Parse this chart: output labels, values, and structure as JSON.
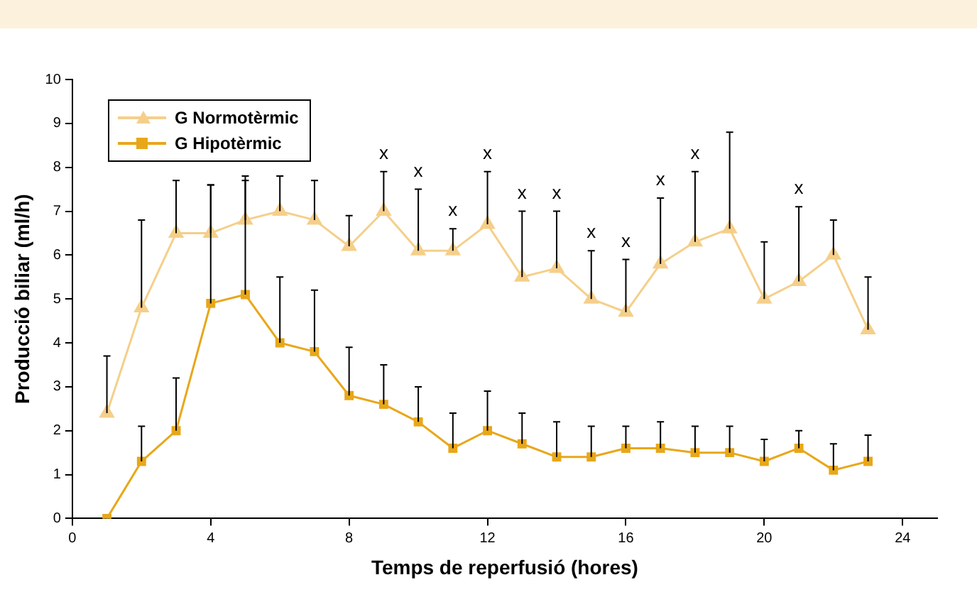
{
  "chart_data": {
    "type": "line",
    "xlabel": "Temps de reperfusió (hores)",
    "ylabel": "Producció biliar (ml/h)",
    "x": [
      1,
      2,
      3,
      4,
      5,
      6,
      7,
      8,
      9,
      10,
      11,
      12,
      13,
      14,
      15,
      16,
      17,
      18,
      19,
      20,
      21,
      22,
      23
    ],
    "series": [
      {
        "name": "G Normotèrmic",
        "color": "#f5cf8a",
        "marker": "triangle",
        "values": [
          2.4,
          4.8,
          6.5,
          6.5,
          6.8,
          7.0,
          6.8,
          6.2,
          7.0,
          6.1,
          6.1,
          6.7,
          5.5,
          5.7,
          5.0,
          4.7,
          5.8,
          6.3,
          6.6,
          5.0,
          5.4,
          6.0,
          4.3
        ],
        "errors": [
          [
            2.4,
            3.7
          ],
          [
            4.8,
            6.8
          ],
          [
            6.5,
            7.7
          ],
          [
            6.5,
            7.6
          ],
          [
            6.8,
            7.8
          ],
          [
            7.0,
            7.8
          ],
          [
            6.8,
            7.7
          ],
          [
            6.2,
            6.9
          ],
          [
            7.0,
            7.9
          ],
          [
            6.1,
            7.5
          ],
          [
            6.1,
            6.6
          ],
          [
            6.7,
            7.9
          ],
          [
            5.5,
            7.0
          ],
          [
            5.7,
            7.0
          ],
          [
            5.0,
            6.1
          ],
          [
            4.7,
            5.9
          ],
          [
            5.8,
            7.3
          ],
          [
            6.3,
            7.9
          ],
          [
            6.6,
            8.8
          ],
          [
            5.0,
            6.3
          ],
          [
            5.4,
            7.1
          ],
          [
            6.0,
            6.8
          ],
          [
            4.3,
            5.5
          ]
        ]
      },
      {
        "name": "G Hipotèrmic",
        "color": "#e8a71a",
        "marker": "square",
        "values": [
          0,
          1.3,
          2.0,
          4.9,
          5.1,
          4.0,
          3.8,
          2.8,
          2.6,
          2.2,
          1.6,
          2.0,
          1.7,
          1.4,
          1.4,
          1.6,
          1.6,
          1.5,
          1.5,
          1.3,
          1.6,
          1.1,
          1.3
        ],
        "errors": [
          null,
          [
            1.3,
            2.1
          ],
          [
            2.0,
            3.2
          ],
          [
            4.9,
            7.6
          ],
          [
            5.1,
            7.7
          ],
          [
            4.0,
            5.5
          ],
          [
            3.8,
            5.2
          ],
          [
            2.8,
            3.9
          ],
          [
            2.6,
            3.5
          ],
          [
            2.2,
            3.0
          ],
          [
            1.6,
            2.4
          ],
          [
            2.0,
            2.9
          ],
          [
            1.7,
            2.4
          ],
          [
            1.4,
            2.2
          ],
          [
            1.4,
            2.1
          ],
          [
            1.6,
            2.1
          ],
          [
            1.6,
            2.2
          ],
          [
            1.5,
            2.1
          ],
          [
            1.5,
            2.1
          ],
          [
            1.3,
            1.8
          ],
          [
            1.6,
            2.0
          ],
          [
            1.1,
            1.7
          ],
          [
            1.3,
            1.9
          ]
        ]
      }
    ],
    "annotations": [
      {
        "text": "x",
        "x": 9,
        "y": 7.9
      },
      {
        "text": "x",
        "x": 10,
        "y": 7.5
      },
      {
        "text": "x",
        "x": 11,
        "y": 6.6
      },
      {
        "text": "x",
        "x": 12,
        "y": 7.9
      },
      {
        "text": "x",
        "x": 13,
        "y": 7.0
      },
      {
        "text": "x",
        "x": 14,
        "y": 7.0
      },
      {
        "text": "x",
        "x": 15,
        "y": 6.1
      },
      {
        "text": "x",
        "x": 16,
        "y": 5.9
      },
      {
        "text": "x",
        "x": 17,
        "y": 7.3
      },
      {
        "text": "x",
        "x": 18,
        "y": 7.9
      },
      {
        "text": "x",
        "x": 21,
        "y": 7.1
      }
    ],
    "xlim": [
      0,
      25
    ],
    "xticks": [
      0,
      4,
      8,
      12,
      16,
      20,
      24
    ],
    "ylim": [
      0,
      10
    ],
    "yticks": [
      0,
      1,
      2,
      3,
      4,
      5,
      6,
      7,
      8,
      9,
      10
    ],
    "grid": false,
    "legend": "top left",
    "line_style": "solid"
  }
}
